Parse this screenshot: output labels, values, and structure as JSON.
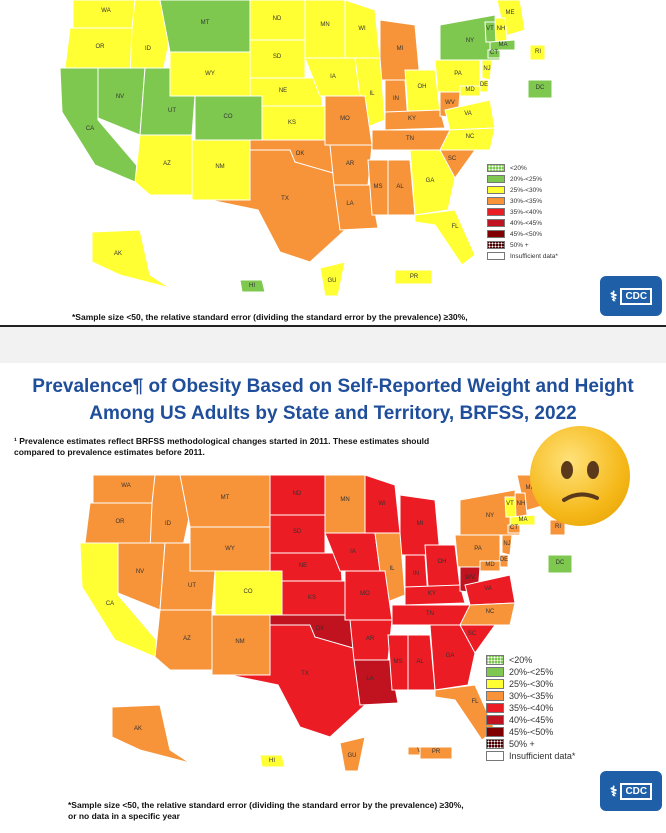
{
  "legend": [
    {
      "label": "<20%",
      "color": "#7ec850",
      "dotted": true
    },
    {
      "label": "20%-<25%",
      "color": "#7ec850"
    },
    {
      "label": "25%-<30%",
      "color": "#ffff33"
    },
    {
      "label": "30%-<35%",
      "color": "#f7943a"
    },
    {
      "label": "35%-<40%",
      "color": "#ec1c24"
    },
    {
      "label": "40%-<45%",
      "color": "#c1121f"
    },
    {
      "label": "45%-<50%",
      "color": "#7f0000"
    },
    {
      "label": "50% +",
      "color": "#4a0000",
      "dotted": true
    },
    {
      "label": "Insufficient data*",
      "color": "#ffffff"
    }
  ],
  "top_panel": {
    "footnote": "*Sample size <50, the relative standard error (dividing the standard error by the prevalence) ≥30%,",
    "cdc": "CDC"
  },
  "bottom_panel": {
    "title_line1": "Prevalence¶ of Obesity Based on Self-Reported Weight and Height",
    "title_line2": "Among US Adults by State and Territory, BRFSS, 2022",
    "note_line1": "¹ Prevalence estimates reflect BRFSS methodological changes started in 2011. These estimates should",
    "note_line2": "compared to prevalence estimates before 2011.",
    "footnote_line1": "*Sample size <50, the relative standard error (dividing the standard error by the prevalence) ≥30%,",
    "footnote_line2": "or no data in a specific year",
    "cdc": "CDC"
  },
  "map_top": {
    "states": [
      {
        "label": "WA",
        "color": "#ffff33"
      },
      {
        "label": "OR",
        "color": "#ffff33"
      },
      {
        "label": "ID",
        "color": "#ffff33"
      },
      {
        "label": "MT",
        "color": "#7ec850"
      },
      {
        "label": "WY",
        "color": "#ffff33"
      },
      {
        "label": "ND",
        "color": "#ffff33"
      },
      {
        "label": "SD",
        "color": "#ffff33"
      },
      {
        "label": "NE",
        "color": "#ffff33"
      },
      {
        "label": "MN",
        "color": "#ffff33"
      },
      {
        "label": "CA",
        "color": "#7ec850"
      },
      {
        "label": "NV",
        "color": "#7ec850"
      },
      {
        "label": "UT",
        "color": "#7ec850"
      },
      {
        "label": "CO",
        "color": "#7ec850"
      },
      {
        "label": "KS",
        "color": "#ffff33"
      },
      {
        "label": "IA",
        "color": "#ffff33"
      },
      {
        "label": "WI",
        "color": "#ffff33"
      },
      {
        "label": "MI",
        "color": "#f7943a"
      },
      {
        "label": "IL",
        "color": "#ffff33"
      },
      {
        "label": "IN",
        "color": "#f7943a"
      },
      {
        "label": "OH",
        "color": "#ffff33"
      },
      {
        "label": "PA",
        "color": "#ffff33"
      },
      {
        "label": "NY",
        "color": "#7ec850"
      },
      {
        "label": "AZ",
        "color": "#ffff33"
      },
      {
        "label": "NM",
        "color": "#ffff33"
      },
      {
        "label": "TX",
        "color": "#f7943a"
      },
      {
        "label": "OK",
        "color": "#f7943a"
      },
      {
        "label": "MO",
        "color": "#f7943a"
      },
      {
        "label": "AR",
        "color": "#f7943a"
      },
      {
        "label": "LA",
        "color": "#f7943a"
      },
      {
        "label": "MS",
        "color": "#f7943a"
      },
      {
        "label": "AL",
        "color": "#f7943a"
      },
      {
        "label": "TN",
        "color": "#f7943a"
      },
      {
        "label": "KY",
        "color": "#f7943a"
      },
      {
        "label": "WV",
        "color": "#f7943a"
      },
      {
        "label": "VA",
        "color": "#ffff33"
      },
      {
        "label": "NC",
        "color": "#ffff33"
      },
      {
        "label": "SC",
        "color": "#f7943a"
      },
      {
        "label": "GA",
        "color": "#ffff33"
      },
      {
        "label": "FL",
        "color": "#ffff33"
      },
      {
        "label": "ME",
        "color": "#ffff33"
      },
      {
        "label": "VT",
        "color": "#7ec850"
      },
      {
        "label": "NH",
        "color": "#ffff33"
      },
      {
        "label": "MA",
        "color": "#7ec850"
      },
      {
        "label": "RI",
        "color": "#ffff33"
      },
      {
        "label": "CT",
        "color": "#7ec850"
      },
      {
        "label": "NJ",
        "color": "#ffff33"
      },
      {
        "label": "DE",
        "color": "#ffff33"
      },
      {
        "label": "MD",
        "color": "#ffff33"
      },
      {
        "label": "DC",
        "color": "#7ec850"
      },
      {
        "label": "AK",
        "color": "#ffff33"
      },
      {
        "label": "HI",
        "color": "#7ec850"
      },
      {
        "label": "GU",
        "color": "#ffff33"
      },
      {
        "label": "PR",
        "color": "#ffff33"
      }
    ]
  },
  "map_bottom": {
    "states": [
      {
        "label": "WA",
        "color": "#f7943a"
      },
      {
        "label": "OR",
        "color": "#f7943a"
      },
      {
        "label": "ID",
        "color": "#f7943a"
      },
      {
        "label": "MT",
        "color": "#f7943a"
      },
      {
        "label": "WY",
        "color": "#f7943a"
      },
      {
        "label": "ND",
        "color": "#ec1c24"
      },
      {
        "label": "SD",
        "color": "#ec1c24"
      },
      {
        "label": "NE",
        "color": "#ec1c24"
      },
      {
        "label": "MN",
        "color": "#f7943a"
      },
      {
        "label": "CA",
        "color": "#ffff33"
      },
      {
        "label": "NV",
        "color": "#f7943a"
      },
      {
        "label": "UT",
        "color": "#f7943a"
      },
      {
        "label": "CO",
        "color": "#ffff33"
      },
      {
        "label": "KS",
        "color": "#ec1c24"
      },
      {
        "label": "IA",
        "color": "#ec1c24"
      },
      {
        "label": "WI",
        "color": "#ec1c24"
      },
      {
        "label": "MI",
        "color": "#ec1c24"
      },
      {
        "label": "IL",
        "color": "#f7943a"
      },
      {
        "label": "IN",
        "color": "#ec1c24"
      },
      {
        "label": "OH",
        "color": "#ec1c24"
      },
      {
        "label": "PA",
        "color": "#f7943a"
      },
      {
        "label": "NY",
        "color": "#f7943a"
      },
      {
        "label": "AZ",
        "color": "#f7943a"
      },
      {
        "label": "NM",
        "color": "#f7943a"
      },
      {
        "label": "TX",
        "color": "#ec1c24"
      },
      {
        "label": "OK",
        "color": "#c1121f"
      },
      {
        "label": "MO",
        "color": "#ec1c24"
      },
      {
        "label": "AR",
        "color": "#ec1c24"
      },
      {
        "label": "LA",
        "color": "#c1121f"
      },
      {
        "label": "MS",
        "color": "#ec1c24"
      },
      {
        "label": "AL",
        "color": "#ec1c24"
      },
      {
        "label": "TN",
        "color": "#ec1c24"
      },
      {
        "label": "KY",
        "color": "#ec1c24"
      },
      {
        "label": "WV",
        "color": "#c1121f"
      },
      {
        "label": "VA",
        "color": "#ec1c24"
      },
      {
        "label": "NC",
        "color": "#f7943a"
      },
      {
        "label": "SC",
        "color": "#ec1c24"
      },
      {
        "label": "GA",
        "color": "#ec1c24"
      },
      {
        "label": "FL",
        "color": "#f7943a"
      },
      {
        "label": "ME",
        "color": "#f7943a"
      },
      {
        "label": "VT",
        "color": "#ffff33"
      },
      {
        "label": "NH",
        "color": "#f7943a"
      },
      {
        "label": "MA",
        "color": "#ffff33"
      },
      {
        "label": "RI",
        "color": "#f7943a"
      },
      {
        "label": "CT",
        "color": "#f7943a"
      },
      {
        "label": "NJ",
        "color": "#f7943a"
      },
      {
        "label": "DE",
        "color": "#f7943a"
      },
      {
        "label": "MD",
        "color": "#f7943a"
      },
      {
        "label": "DC",
        "color": "#7ec850"
      },
      {
        "label": "AK",
        "color": "#f7943a"
      },
      {
        "label": "HI",
        "color": "#ffff33"
      },
      {
        "label": "GU",
        "color": "#f7943a"
      },
      {
        "label": "VI",
        "color": "#f7943a"
      },
      {
        "label": "PR",
        "color": "#f7943a"
      }
    ]
  }
}
